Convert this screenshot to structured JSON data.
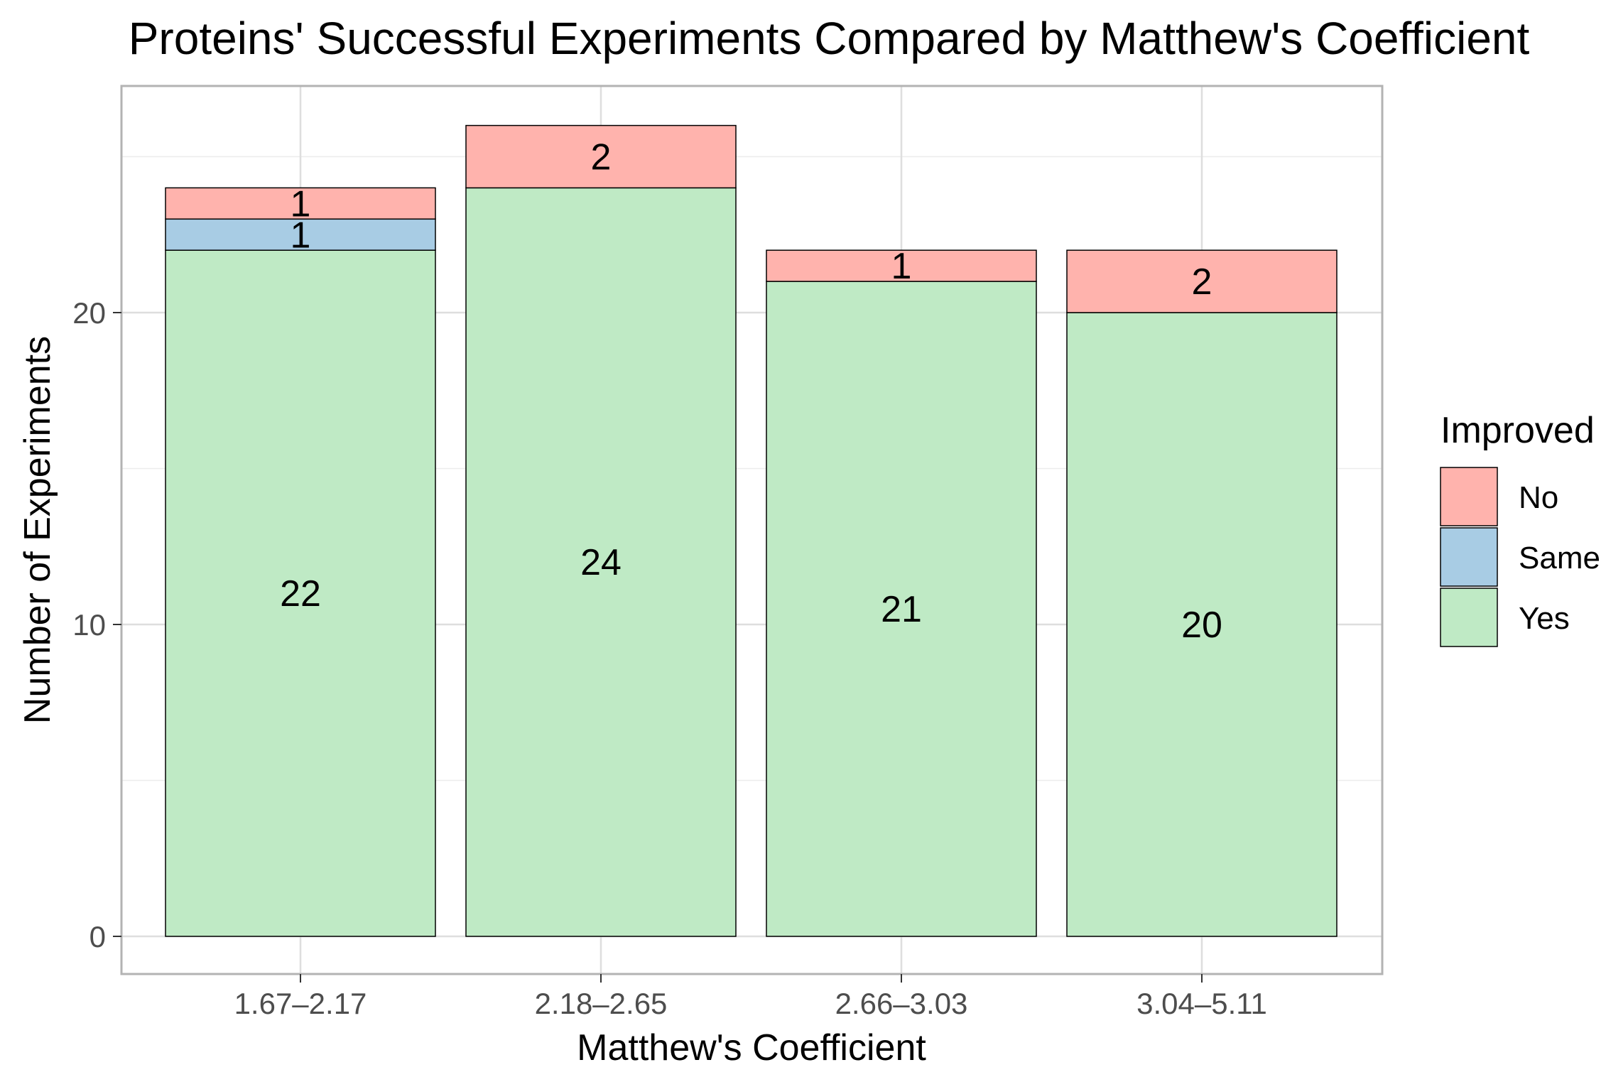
{
  "chart_data": {
    "type": "bar",
    "stacked": true,
    "title": "Proteins' Successful Experiments Compared by Matthew's Coefficient",
    "xlabel": "Matthew's Coefficient",
    "ylabel": "Number of Experiments",
    "categories": [
      "1.67–2.17",
      "2.18–2.65",
      "2.66–3.03",
      "3.04–5.11"
    ],
    "ylim": [
      -1.2,
      27.3
    ],
    "yticks": [
      0,
      10,
      20
    ],
    "grid": true,
    "legend": {
      "title": "Improved",
      "position": "right",
      "entries": [
        "No",
        "Same",
        "Yes"
      ]
    },
    "stack_order": [
      "Yes",
      "Same",
      "No"
    ],
    "series": [
      {
        "name": "No",
        "color": "#ffb3ad",
        "values": [
          1,
          2,
          1,
          2
        ]
      },
      {
        "name": "Same",
        "color": "#a8cce4",
        "values": [
          1,
          0,
          0,
          0
        ]
      },
      {
        "name": "Yes",
        "color": "#bfeac5",
        "values": [
          22,
          24,
          21,
          20
        ]
      }
    ]
  }
}
